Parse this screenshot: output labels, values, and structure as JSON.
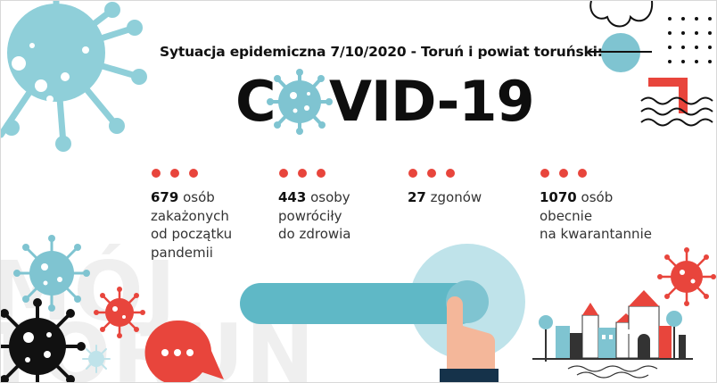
{
  "header": {
    "subtitle": "Sytuacja epidemiczna 7/10/2020 - Toruń i powiat toruński:",
    "title_first_letter": "C",
    "title_rest": "VID-19"
  },
  "stats": [
    {
      "number": "679",
      "lines": [
        "osób",
        "zakażonych",
        "od początku",
        "pandemii"
      ]
    },
    {
      "number": "443",
      "lines": [
        "osoby",
        "powróciły",
        "do zdrowia"
      ]
    },
    {
      "number": "27",
      "lines": [
        "zgonów"
      ]
    },
    {
      "number": "1070",
      "lines": [
        "osób",
        "obecnie",
        "na kwarantannie"
      ]
    }
  ],
  "watermark": {
    "line1": "MÓJ",
    "line2": "TORUŃ"
  },
  "colors": {
    "accent_red": "#e8453c",
    "virus_blue": "#7fc4d1",
    "slider_blue": "#5fb8c6",
    "text_dark": "#111111"
  },
  "icons": [
    "virus-icon",
    "chat-bubble-icon",
    "pointing-hand-icon",
    "city-skyline-icon"
  ]
}
